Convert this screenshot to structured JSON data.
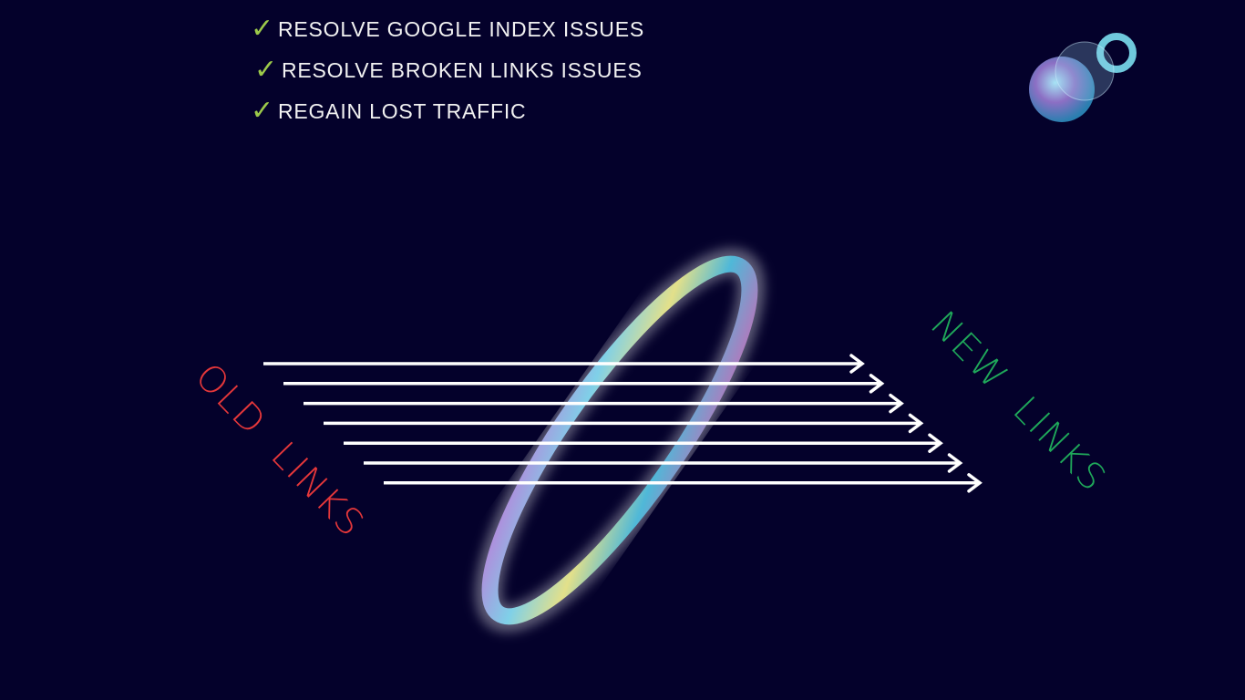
{
  "checklist": [
    {
      "icon": "checkmark-icon",
      "label": "RESOLVE GOOGLE INDEX ISSUES"
    },
    {
      "icon": "checkmark-icon",
      "label": "RESOLVE BROKEN LINKS ISSUES"
    },
    {
      "icon": "checkmark-icon",
      "label": "REGAIN LOST TRAFFIC"
    }
  ],
  "old_label": "OLD  LINKS",
  "new_label": "NEW  LINKS",
  "colors": {
    "background": "#04012b",
    "check": "#9cc94a",
    "old": "#e5373a",
    "new": "#1fa85a",
    "arrows": "#ffffff"
  },
  "arrow_count": 7
}
